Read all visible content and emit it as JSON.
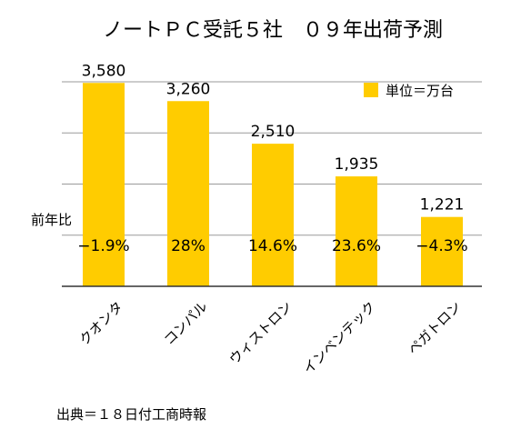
{
  "chart_data": {
    "type": "bar",
    "title": "ノートＰＣ受託５社　０９年出荷予測",
    "categories": [
      "クオンタ",
      "コンパル",
      "ウィストロン",
      "インベンテック",
      "ペガトロン"
    ],
    "series": [
      {
        "name": "単位＝万台",
        "values": [
          3580,
          3260,
          2510,
          1935,
          1221
        ]
      }
    ],
    "value_labels": [
      "3,580",
      "3,260",
      "2,510",
      "1,935",
      "1,221"
    ],
    "yoy_label": "前年比",
    "yoy_values": [
      "−1.9%",
      "28%",
      "14.6%",
      "23.6%",
      "−4.3%"
    ],
    "ylim": [
      0,
      3600
    ],
    "grid": true,
    "legend_position": "top-right",
    "bar_color": "#FFCC00",
    "source_note": "出典＝１８日付工商時報"
  }
}
